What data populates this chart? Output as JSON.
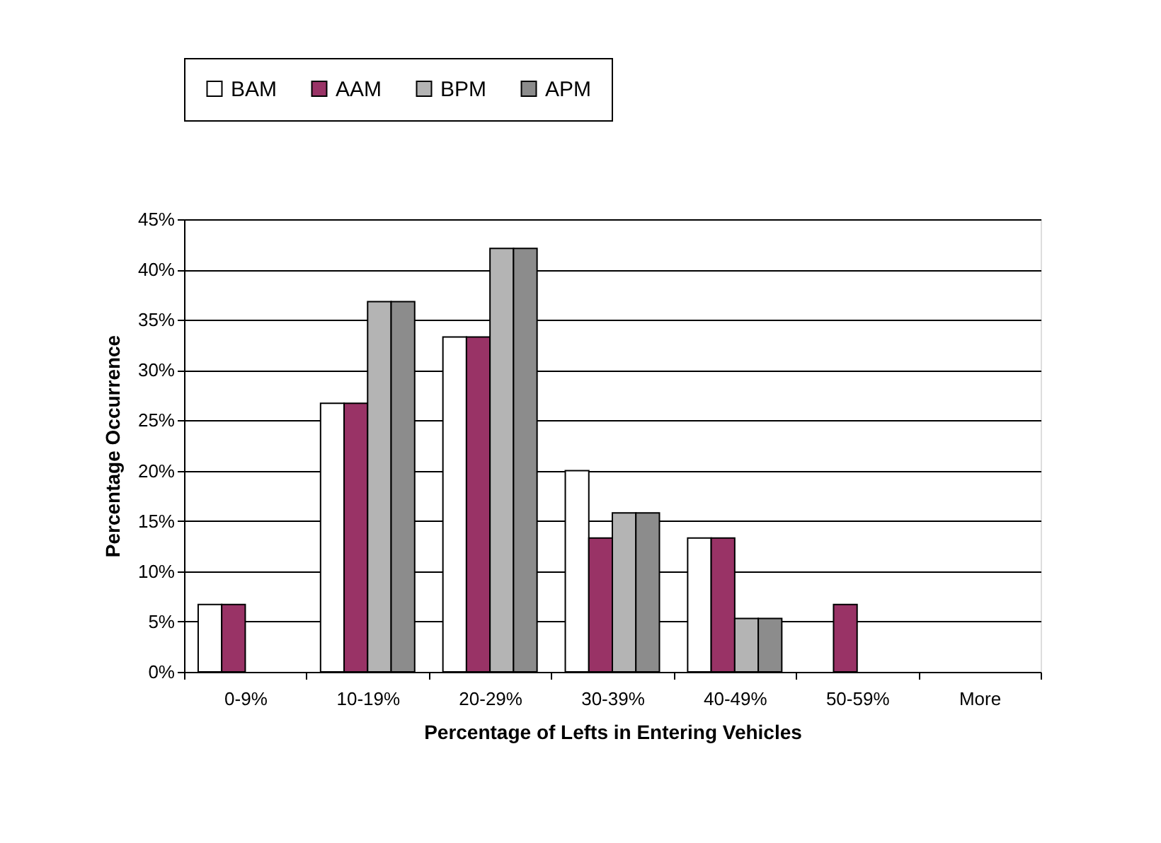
{
  "chart_data": {
    "type": "bar",
    "xlabel": "Percentage of Lefts in Entering Vehicles",
    "ylabel": "Percentage Occurrence",
    "categories": [
      "0-9%",
      "10-19%",
      "20-29%",
      "30-39%",
      "40-49%",
      "50-59%",
      "More"
    ],
    "series": [
      {
        "name": "BAM",
        "color": "#ffffff",
        "values": [
          6.7,
          26.7,
          33.3,
          20,
          13.3,
          0,
          0
        ]
      },
      {
        "name": "AAM",
        "color": "#993366",
        "values": [
          6.7,
          26.7,
          33.3,
          13.3,
          13.3,
          6.7,
          0
        ]
      },
      {
        "name": "BPM",
        "color": "#b4b4b4",
        "values": [
          0,
          36.8,
          42.1,
          15.8,
          5.3,
          0,
          0
        ]
      },
      {
        "name": "APM",
        "color": "#8c8c8c",
        "values": [
          0,
          36.8,
          42.1,
          15.8,
          5.3,
          0,
          0
        ]
      }
    ],
    "ylim": [
      0,
      45
    ],
    "yticks": [
      {
        "value": 0,
        "label": "0%"
      },
      {
        "value": 5,
        "label": "5%"
      },
      {
        "value": 10,
        "label": "10%"
      },
      {
        "value": 15,
        "label": "15%"
      },
      {
        "value": 20,
        "label": "20%"
      },
      {
        "value": 25,
        "label": "25%"
      },
      {
        "value": 30,
        "label": "30%"
      },
      {
        "value": 35,
        "label": "35%"
      },
      {
        "value": 40,
        "label": "40%"
      },
      {
        "value": 45,
        "label": "45%"
      }
    ],
    "grid": "y",
    "legend": "top"
  }
}
